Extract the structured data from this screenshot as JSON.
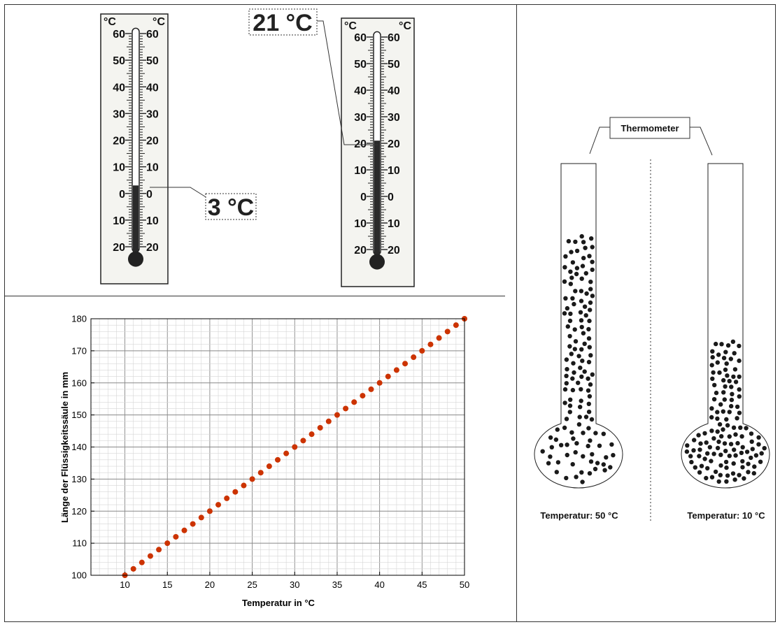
{
  "thermometers": {
    "left": {
      "unit_left": "°C",
      "unit_right": "°C",
      "scale_labels": [
        "60",
        "50",
        "40",
        "30",
        "20",
        "10",
        "0",
        "10",
        "20"
      ],
      "reading_value": 3,
      "reading_label": "3 °C"
    },
    "right": {
      "unit_left": "°C",
      "unit_right": "°C",
      "scale_labels": [
        "60",
        "50",
        "40",
        "30",
        "20",
        "10",
        "0",
        "10",
        "20"
      ],
      "reading_value": 21,
      "reading_label": "21 °C"
    }
  },
  "chart_data": {
    "type": "scatter",
    "xlabel": "Temperatur in °C",
    "ylabel": "Länge der Flüssigkeitssäule in mm",
    "xlim": [
      6,
      50
    ],
    "ylim": [
      100,
      180
    ],
    "x_ticks": [
      10,
      15,
      20,
      25,
      30,
      35,
      40,
      45,
      50
    ],
    "y_ticks": [
      100,
      110,
      120,
      130,
      140,
      150,
      160,
      170,
      180
    ],
    "grid": true,
    "point_color": "#cc3300",
    "x": [
      10,
      11,
      12,
      13,
      14,
      15,
      16,
      17,
      18,
      19,
      20,
      21,
      22,
      23,
      24,
      25,
      26,
      27,
      28,
      29,
      30,
      31,
      32,
      33,
      34,
      35,
      36,
      37,
      38,
      39,
      40,
      41,
      42,
      43,
      44,
      45,
      46,
      47,
      48,
      49,
      50
    ],
    "y": [
      100,
      102,
      104,
      106,
      108,
      110,
      112,
      114,
      116,
      118,
      120,
      122,
      124,
      126,
      128,
      130,
      132,
      134,
      136,
      138,
      140,
      142,
      144,
      146,
      148,
      150,
      152,
      154,
      156,
      158,
      160,
      162,
      164,
      166,
      168,
      170,
      172,
      174,
      176,
      178,
      180
    ]
  },
  "particle_diagram": {
    "label": "Thermometer",
    "left_caption": "Temperatur: 50 °C",
    "right_caption": "Temperatur: 10 °C"
  }
}
